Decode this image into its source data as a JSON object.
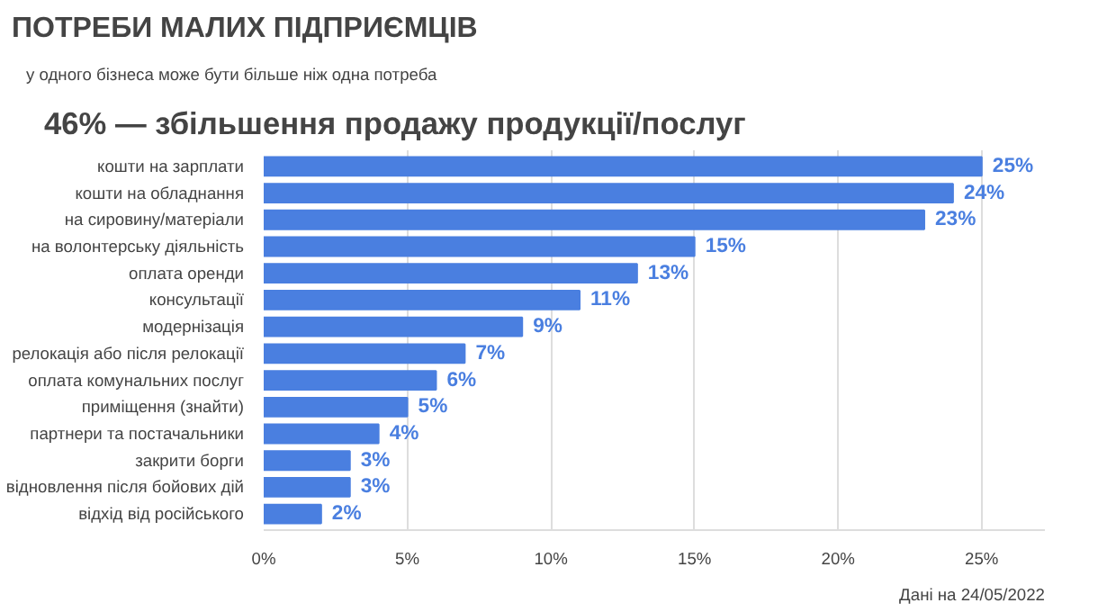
{
  "chart_data": {
    "type": "bar",
    "orientation": "horizontal",
    "title": "ПОТРЕБИ МАЛИХ ПІДПРИЄМЦІВ",
    "subtitle": "у одного бізнеса може бути більше ніж одна потреба",
    "annotations": [
      "46% — збільшення продажу продукції/послуг",
      "Дані на 24/05/2022"
    ],
    "categories": [
      "кошти на зарплати",
      "кошти на обладнання",
      "на сировину/матеріали",
      "на волонтерську діяльність",
      "оплата оренди",
      "консультації",
      "модернізація",
      "релокація або після релокації",
      "оплата комунальних послуг",
      "приміщення (знайти)",
      "партнери та постачальники",
      "закрити борги",
      "відновлення після бойових дій",
      "відхід від російського"
    ],
    "values": [
      25,
      24,
      23,
      15,
      13,
      11,
      9,
      7,
      6,
      5,
      4,
      3,
      3,
      2
    ],
    "value_labels": [
      "25%",
      "24%",
      "23%",
      "15%",
      "13%",
      "11%",
      "9%",
      "7%",
      "6%",
      "5%",
      "4%",
      "3%",
      "3%",
      "2%"
    ],
    "color": "#4a7fe0",
    "xlim": [
      0,
      27.2
    ],
    "xticks": [
      {
        "value": 0,
        "label": "0%"
      },
      {
        "value": 5,
        "label": "5%"
      },
      {
        "value": 10,
        "label": "10%"
      },
      {
        "value": 15,
        "label": "15%"
      },
      {
        "value": 20,
        "label": "20%"
      },
      {
        "value": 25,
        "label": "25%"
      }
    ],
    "grid": "x"
  }
}
